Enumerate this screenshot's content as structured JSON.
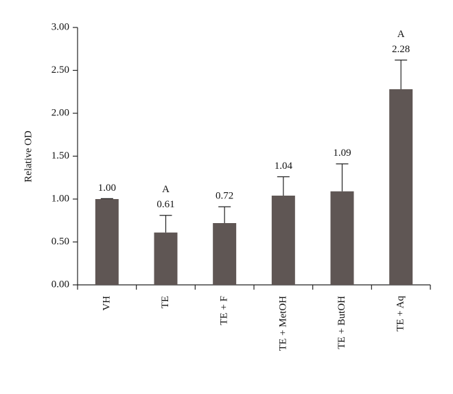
{
  "chart_data": {
    "type": "bar",
    "ylabel": "Relative OD",
    "categories": [
      "VH",
      "TE",
      "TE + F",
      "TE + MetOH",
      "TE + ButOH",
      "TE + Aq"
    ],
    "values": [
      1.0,
      0.61,
      0.72,
      1.04,
      1.09,
      2.28
    ],
    "value_labels": [
      "1.00",
      "0.61",
      "0.72",
      "1.04",
      "1.09",
      "2.28"
    ],
    "errors": [
      0.005,
      0.2,
      0.19,
      0.22,
      0.32,
      0.34
    ],
    "annotations": [
      {
        "text": "A",
        "category": "TE"
      },
      {
        "text": "A",
        "category": "TE + Aq"
      }
    ],
    "color": "#5f5654",
    "ylim": [
      0,
      3
    ],
    "yticks": [
      {
        "value": 0,
        "label": "0.00"
      },
      {
        "value": 0.5,
        "label": "0.50"
      },
      {
        "value": 1,
        "label": "1.00"
      },
      {
        "value": 1.5,
        "label": "1.50"
      },
      {
        "value": 2,
        "label": "2.00"
      },
      {
        "value": 2.5,
        "label": "2.50"
      },
      {
        "value": 3,
        "label": "3.00"
      }
    ],
    "grid": false
  }
}
